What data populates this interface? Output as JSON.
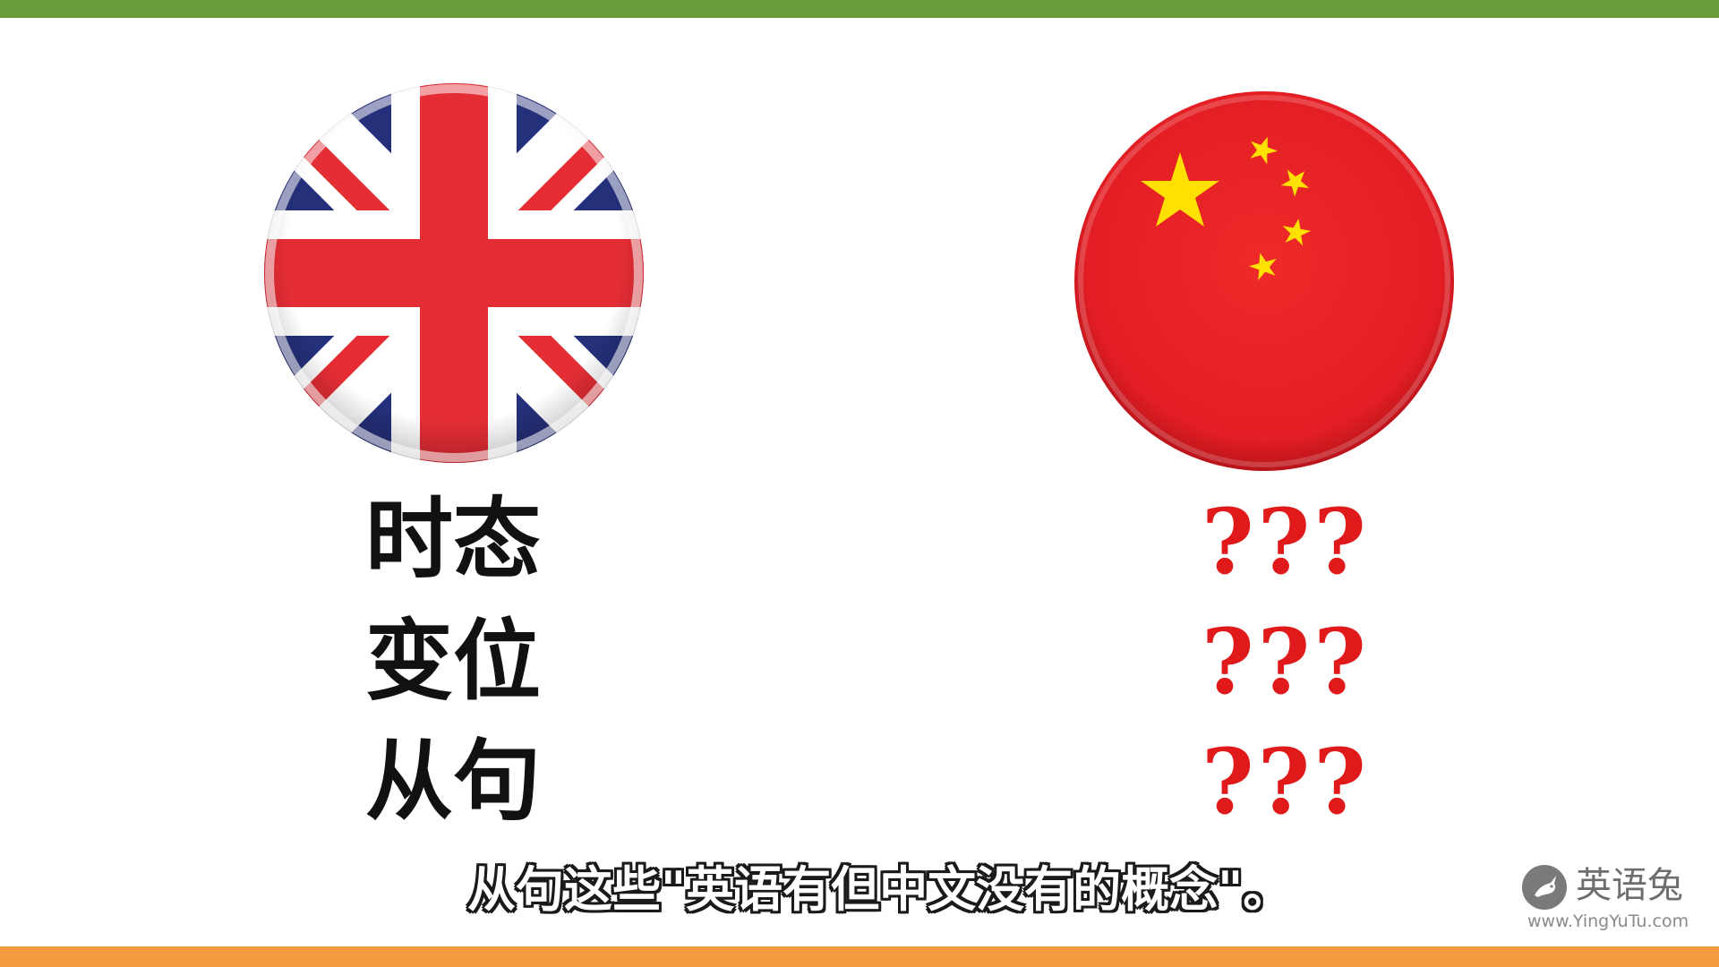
{
  "colors": {
    "top_bar": "#6a9c3a",
    "bottom_bar": "#f19a3e",
    "question_marks": "#e0191a",
    "concept_text": "#111111",
    "uk_blue": "#25307b",
    "uk_red": "#e52d35",
    "cn_red": "#e31e24",
    "cn_star": "#ffe000",
    "logo": "#7a7a7a"
  },
  "flags": {
    "left": "uk-flag-icon",
    "right": "china-flag-icon"
  },
  "concepts": [
    {
      "label": "时态",
      "answer": "???"
    },
    {
      "label": "变位",
      "answer": "???"
    },
    {
      "label": "从句",
      "answer": "???"
    }
  ],
  "subtitle": "从句这些\"英语有但中文没有的概念\"。",
  "logo": {
    "icon": "rabbit-icon",
    "name": "英语兔",
    "url": "www.YingYuTu.com"
  }
}
